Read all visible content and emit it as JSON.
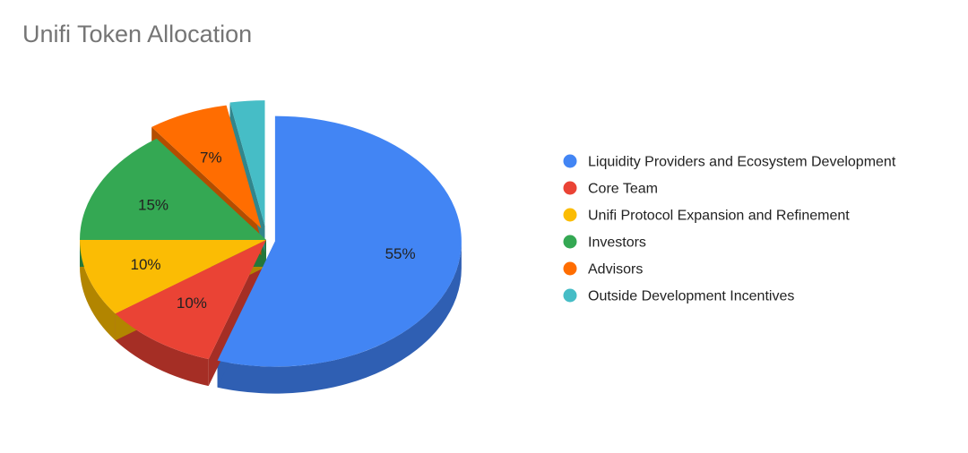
{
  "chart_data": {
    "type": "pie",
    "title": "Unifi Token Allocation",
    "legend_position": "right",
    "three_d": true,
    "exploded": true,
    "slices": [
      {
        "label": "Liquidity Providers and Ecosystem Development",
        "value": 55,
        "display": "55%",
        "color": "#4285f4",
        "side_color": "#2f5fb3"
      },
      {
        "label": "Core Team",
        "value": 10,
        "display": "10%",
        "color": "#ea4335",
        "side_color": "#a52e25"
      },
      {
        "label": "Unifi Protocol Expansion and Refinement",
        "value": 10,
        "display": "10%",
        "color": "#fbbc04",
        "side_color": "#b28500"
      },
      {
        "label": "Investors",
        "value": 15,
        "display": "15%",
        "color": "#34a853",
        "side_color": "#24773b"
      },
      {
        "label": "Advisors",
        "value": 7,
        "display": "7%",
        "color": "#ff6d01",
        "side_color": "#b44d00"
      },
      {
        "label": "Outside Development Incentives",
        "value": 3,
        "display": "",
        "color": "#46bdc6",
        "side_color": "#31868c"
      }
    ]
  }
}
